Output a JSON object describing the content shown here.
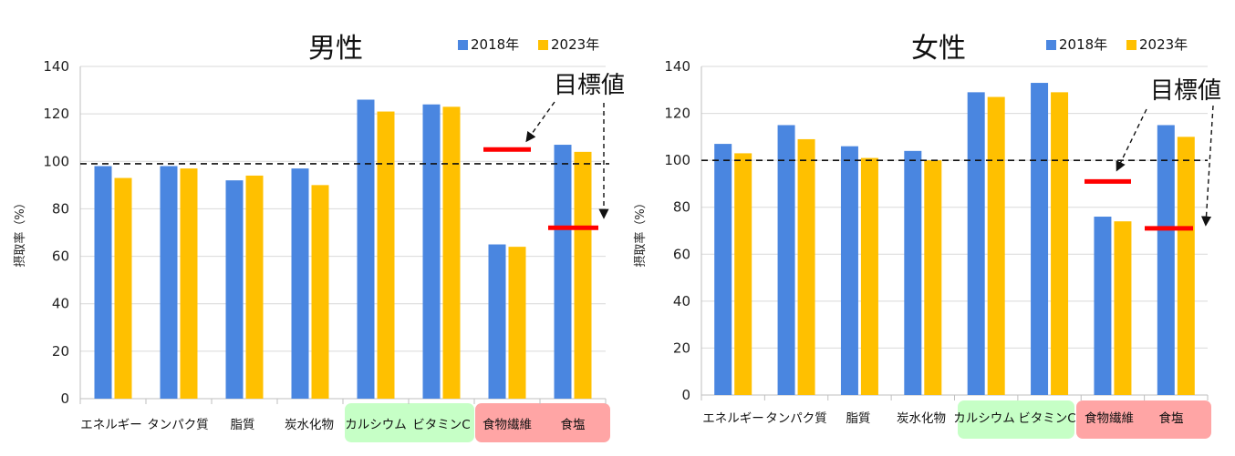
{
  "colors": {
    "series_2018": "#4A86E0",
    "series_2023": "#FFC000",
    "target": "#FF0000",
    "highlight_green": "#C6FFC6",
    "highlight_red": "#FFA5A5",
    "gridline": "#D9D9D9"
  },
  "chart_data": [
    {
      "type": "bar",
      "title": "男性",
      "ylabel": "摂取率（%）",
      "ylim": [
        0,
        140
      ],
      "yticks": [
        0,
        20,
        40,
        60,
        80,
        100,
        120,
        140
      ],
      "categories": [
        "エネルギー",
        "タンパク質",
        "脂質",
        "炭水化物",
        "カルシウム",
        "ビタミンC",
        "食物繊維",
        "食塩"
      ],
      "series": [
        {
          "name": "2018年",
          "values": [
            98,
            98,
            92,
            97,
            126,
            124,
            65,
            107
          ]
        },
        {
          "name": "2023年",
          "values": [
            93,
            97,
            94,
            90,
            121,
            123,
            64,
            104
          ]
        }
      ],
      "reference_line": 99,
      "targets": [
        {
          "category": "食物繊維",
          "value": 105
        },
        {
          "category": "食塩",
          "value": 72
        }
      ],
      "annotation": "目標値",
      "legend_position": "top-right",
      "grid": true
    },
    {
      "type": "bar",
      "title": "女性",
      "ylabel": "摂取率（%）",
      "ylim": [
        0,
        140
      ],
      "yticks": [
        0,
        20,
        40,
        60,
        80,
        100,
        120,
        140
      ],
      "categories": [
        "エネルギー",
        "タンパク質",
        "脂質",
        "炭水化物",
        "カルシウム",
        "ビタミンC",
        "食物繊維",
        "食塩"
      ],
      "series": [
        {
          "name": "2018年",
          "values": [
            107,
            115,
            106,
            104,
            129,
            133,
            76,
            115
          ]
        },
        {
          "name": "2023年",
          "values": [
            103,
            109,
            101,
            100,
            127,
            129,
            74,
            110
          ]
        }
      ],
      "reference_line": 100,
      "targets": [
        {
          "category": "食物繊維",
          "value": 91
        },
        {
          "category": "食塩",
          "value": 71
        }
      ],
      "annotation": "目標値",
      "legend_position": "top-right",
      "grid": true
    }
  ]
}
